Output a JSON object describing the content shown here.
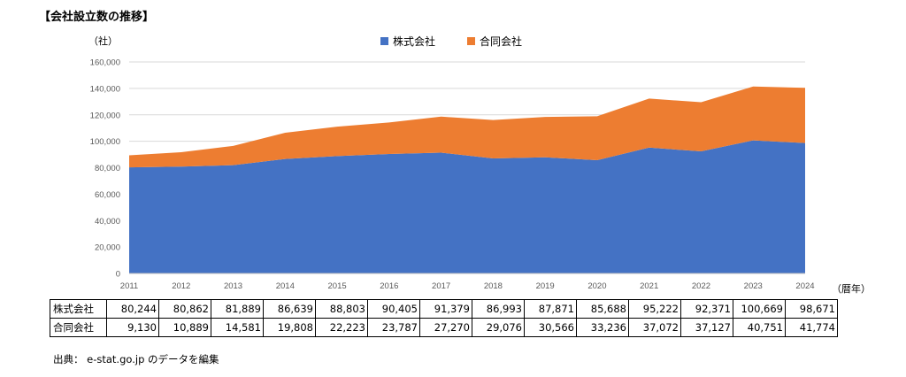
{
  "title": "【会社設立数の推移】",
  "y_unit": "（社）",
  "x_unit": "（暦年）",
  "source": "出典： e-stat.go.jp のデータを編集",
  "chart_data": {
    "type": "area",
    "stacked": true,
    "x": [
      "2011",
      "2012",
      "2013",
      "2014",
      "2015",
      "2016",
      "2017",
      "2018",
      "2019",
      "2020",
      "2021",
      "2022",
      "2023",
      "2024"
    ],
    "series": [
      {
        "name": "株式会社",
        "color": "#4472C4",
        "values": [
          80244,
          80862,
          81889,
          86639,
          88803,
          90405,
          91379,
          86993,
          87871,
          85688,
          95222,
          92371,
          100669,
          98671
        ]
      },
      {
        "name": "合同会社",
        "color": "#ED7D31",
        "values": [
          9130,
          10889,
          14581,
          19808,
          22223,
          23787,
          27270,
          29076,
          30566,
          33236,
          37072,
          37127,
          40751,
          41774
        ]
      }
    ],
    "ylim": [
      0,
      160000
    ],
    "yticks": [
      "0",
      "20,000",
      "40,000",
      "60,000",
      "80,000",
      "100,000",
      "120,000",
      "140,000",
      "160,000"
    ],
    "grid": true,
    "legend_position": "top"
  },
  "table": {
    "rows": [
      {
        "label": "株式会社",
        "values": [
          "80,244",
          "80,862",
          "81,889",
          "86,639",
          "88,803",
          "90,405",
          "91,379",
          "86,993",
          "87,871",
          "85,688",
          "95,222",
          "92,371",
          "100,669",
          "98,671"
        ]
      },
      {
        "label": "合同会社",
        "values": [
          "9,130",
          "10,889",
          "14,581",
          "19,808",
          "22,223",
          "23,787",
          "27,270",
          "29,076",
          "30,566",
          "33,236",
          "37,072",
          "37,127",
          "40,751",
          "41,774"
        ]
      }
    ]
  }
}
